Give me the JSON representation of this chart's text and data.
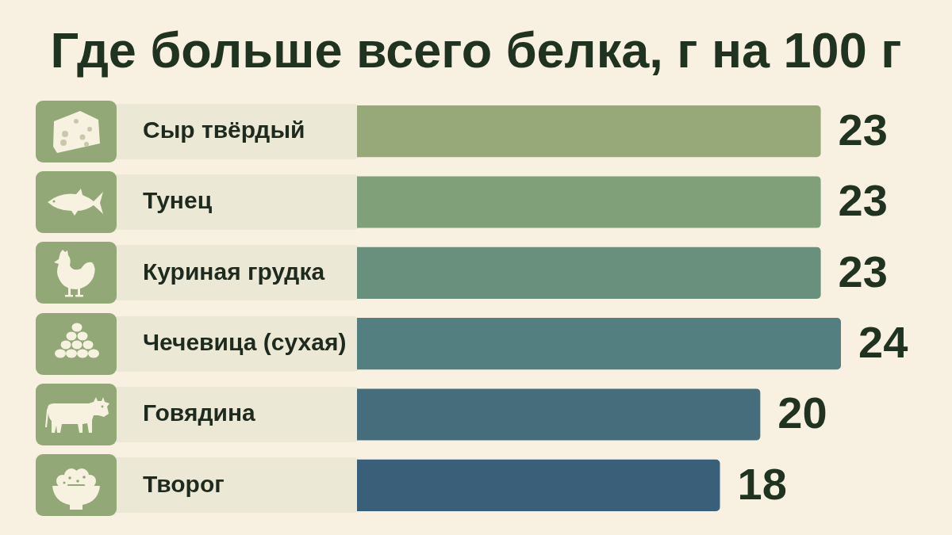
{
  "chart_data": {
    "type": "bar",
    "orientation": "horizontal",
    "title": "Где больше всего белка, г на 100 г",
    "categories": [
      "Сыр твёрдый",
      "Тунец",
      "Куриная грудка",
      "Чечевица (сухая)",
      "Говядина",
      "Творог"
    ],
    "values": [
      23,
      23,
      23,
      24,
      20,
      18
    ],
    "colors": [
      "#97a978",
      "#7fa078",
      "#68907c",
      "#537f80",
      "#466d7c",
      "#3a5f78"
    ],
    "data_labels": true,
    "tick_labels": "y"
  }
}
